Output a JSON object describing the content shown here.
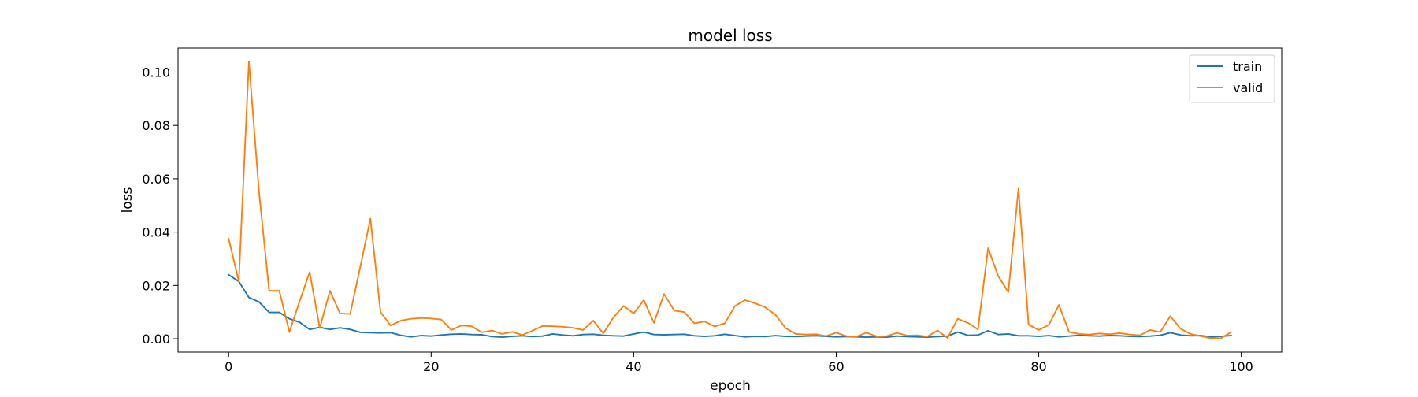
{
  "chart_data": {
    "type": "line",
    "title": "model loss",
    "xlabel": "epoch",
    "ylabel": "loss",
    "xlim": [
      -5,
      104
    ],
    "ylim": [
      -0.005,
      0.109
    ],
    "xticks": [
      0,
      20,
      40,
      60,
      80,
      100
    ],
    "xtick_labels": [
      "0",
      "20",
      "40",
      "60",
      "80",
      "100"
    ],
    "yticks": [
      0.0,
      0.02,
      0.04,
      0.06,
      0.08,
      0.1
    ],
    "ytick_labels": [
      "0.00",
      "0.02",
      "0.04",
      "0.06",
      "0.08",
      "0.10"
    ],
    "grid": false,
    "legend_position": "top-right",
    "series": [
      {
        "name": "train",
        "color": "#1f77b4",
        "x": [
          0,
          1,
          2,
          3,
          4,
          5,
          6,
          7,
          8,
          9,
          10,
          11,
          12,
          13,
          14,
          15,
          16,
          17,
          18,
          19,
          20,
          21,
          22,
          23,
          24,
          25,
          26,
          27,
          28,
          29,
          30,
          31,
          32,
          33,
          34,
          35,
          36,
          37,
          38,
          39,
          40,
          41,
          42,
          43,
          44,
          45,
          46,
          47,
          48,
          49,
          50,
          51,
          52,
          53,
          54,
          55,
          56,
          57,
          58,
          59,
          60,
          61,
          62,
          63,
          64,
          65,
          66,
          67,
          68,
          69,
          70,
          71,
          72,
          73,
          74,
          75,
          76,
          77,
          78,
          79,
          80,
          81,
          82,
          83,
          84,
          85,
          86,
          87,
          88,
          89,
          90,
          91,
          92,
          93,
          94,
          95,
          96,
          97,
          98,
          99
        ],
        "values": [
          0.024,
          0.0215,
          0.0155,
          0.0138,
          0.0099,
          0.0099,
          0.0075,
          0.0062,
          0.0035,
          0.0043,
          0.0035,
          0.0041,
          0.0035,
          0.0024,
          0.0023,
          0.0022,
          0.0023,
          0.0013,
          0.0007,
          0.0012,
          0.001,
          0.0014,
          0.0017,
          0.0018,
          0.0016,
          0.0015,
          0.0008,
          0.0006,
          0.0009,
          0.0011,
          0.0008,
          0.001,
          0.0018,
          0.0014,
          0.0011,
          0.0016,
          0.0017,
          0.0013,
          0.0011,
          0.001,
          0.0018,
          0.0025,
          0.0016,
          0.0015,
          0.0016,
          0.0017,
          0.0011,
          0.0009,
          0.0011,
          0.0017,
          0.0012,
          0.0007,
          0.0009,
          0.0008,
          0.0012,
          0.0009,
          0.0008,
          0.001,
          0.0011,
          0.0009,
          0.0007,
          0.0008,
          0.0007,
          0.0006,
          0.0007,
          0.0006,
          0.001,
          0.0008,
          0.0007,
          0.0006,
          0.0008,
          0.001,
          0.0025,
          0.0013,
          0.0014,
          0.003,
          0.0016,
          0.0018,
          0.0011,
          0.0011,
          0.0009,
          0.0012,
          0.0007,
          0.001,
          0.0013,
          0.0011,
          0.001,
          0.0012,
          0.0011,
          0.0009,
          0.0008,
          0.001,
          0.0013,
          0.0023,
          0.0014,
          0.0011,
          0.0012,
          0.0007,
          0.0009,
          0.0012
        ]
      },
      {
        "name": "valid",
        "color": "#ff7f0e",
        "x": [
          0,
          1,
          2,
          3,
          4,
          5,
          6,
          7,
          8,
          9,
          10,
          11,
          12,
          13,
          14,
          15,
          16,
          17,
          18,
          19,
          20,
          21,
          22,
          23,
          24,
          25,
          26,
          27,
          28,
          29,
          30,
          31,
          32,
          33,
          34,
          35,
          36,
          37,
          38,
          39,
          40,
          41,
          42,
          43,
          44,
          45,
          46,
          47,
          48,
          49,
          50,
          51,
          52,
          53,
          54,
          55,
          56,
          57,
          58,
          59,
          60,
          61,
          62,
          63,
          64,
          65,
          66,
          67,
          68,
          69,
          70,
          71,
          72,
          73,
          74,
          75,
          76,
          77,
          78,
          79,
          80,
          81,
          82,
          83,
          84,
          85,
          86,
          87,
          88,
          89,
          90,
          91,
          92,
          93,
          94,
          95,
          96,
          97,
          98,
          99
        ],
        "values": [
          0.0375,
          0.0215,
          0.104,
          0.055,
          0.018,
          0.018,
          0.0025,
          0.014,
          0.025,
          0.004,
          0.018,
          0.0095,
          0.0093,
          0.027,
          0.045,
          0.01,
          0.005,
          0.0068,
          0.0075,
          0.0078,
          0.0076,
          0.0072,
          0.0033,
          0.005,
          0.0047,
          0.0024,
          0.0031,
          0.0018,
          0.0026,
          0.0014,
          0.003,
          0.0048,
          0.0047,
          0.0045,
          0.0041,
          0.0033,
          0.0068,
          0.002,
          0.008,
          0.0123,
          0.0095,
          0.0145,
          0.006,
          0.0168,
          0.0106,
          0.01,
          0.0058,
          0.0065,
          0.0046,
          0.0058,
          0.0123,
          0.0145,
          0.0133,
          0.0118,
          0.009,
          0.004,
          0.0018,
          0.0016,
          0.0017,
          0.001,
          0.0023,
          0.001,
          0.0008,
          0.0023,
          0.0009,
          0.001,
          0.0022,
          0.0012,
          0.0013,
          0.0008,
          0.0031,
          0.0003,
          0.0075,
          0.006,
          0.0035,
          0.034,
          0.0235,
          0.0175,
          0.0563,
          0.0053,
          0.0033,
          0.0052,
          0.0127,
          0.0025,
          0.0018,
          0.0016,
          0.002,
          0.0017,
          0.0021,
          0.0016,
          0.0013,
          0.0033,
          0.0025,
          0.0085,
          0.0038,
          0.0018,
          0.001,
          0.0002,
          0.0002,
          0.0025
        ]
      }
    ]
  }
}
